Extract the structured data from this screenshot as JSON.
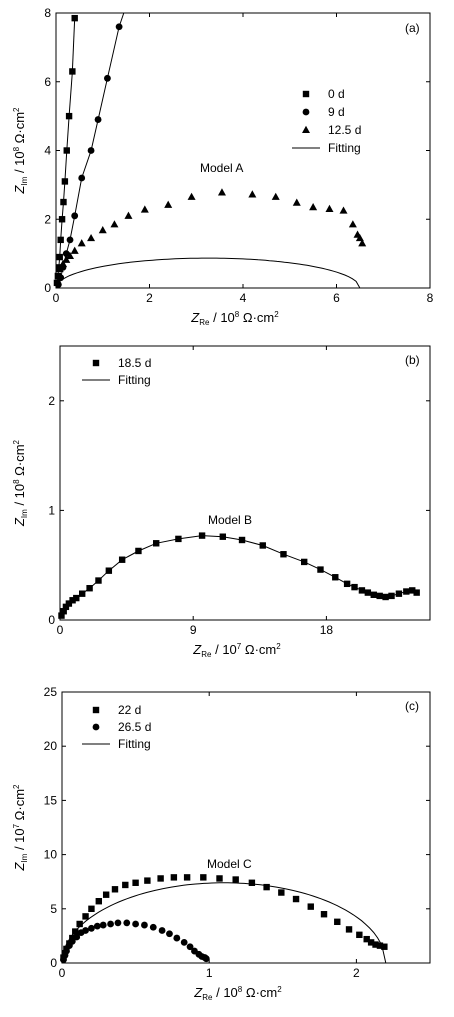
{
  "chart_data": [
    {
      "type": "scatter",
      "panel_label": "(a)",
      "annotation": "Model A",
      "xlabel": {
        "main": "Z",
        "sub": "Re",
        "unit": " / 10",
        "exp": "8",
        "unit2": " Ω·cm",
        "exp2": "2"
      },
      "ylabel": {
        "main": "Z",
        "sub": "Im",
        "unit": " / 10",
        "exp": "8",
        "unit2": " Ω·cm",
        "exp2": "2"
      },
      "xlim": [
        0,
        8
      ],
      "ylim": [
        0,
        8
      ],
      "xticks": [
        0,
        2,
        4,
        6,
        8
      ],
      "yticks": [
        0,
        2,
        4,
        6,
        8
      ],
      "legend_position": "top-right",
      "series": [
        {
          "name": "0 d",
          "marker": "square",
          "x": [
            0.02,
            0.04,
            0.06,
            0.08,
            0.1,
            0.13,
            0.16,
            0.19,
            0.23,
            0.28,
            0.35
          ],
          "y": [
            0.15,
            0.35,
            0.6,
            0.9,
            1.4,
            2.0,
            2.5,
            3.1,
            4.0,
            5.0,
            6.3
          ]
        },
        {
          "name": "9 d",
          "marker": "circle",
          "x": [
            0.05,
            0.1,
            0.15,
            0.22,
            0.3,
            0.4,
            0.55,
            0.75,
            0.9,
            1.1,
            1.35
          ],
          "y": [
            0.1,
            0.3,
            0.6,
            1.0,
            1.4,
            2.1,
            3.2,
            4.0,
            4.9,
            6.1,
            7.6
          ]
        },
        {
          "name": "12.5 d",
          "marker": "triangle",
          "x": [
            0.08,
            0.15,
            0.22,
            0.3,
            0.4,
            0.55,
            0.75,
            1.0,
            1.25,
            1.55,
            1.9,
            2.4,
            2.9,
            3.55,
            4.2,
            4.7,
            5.15,
            5.5,
            5.85,
            6.15,
            6.35,
            6.45,
            6.5,
            6.55
          ],
          "y": [
            0.55,
            0.7,
            0.82,
            0.93,
            1.08,
            1.3,
            1.45,
            1.68,
            1.85,
            2.1,
            2.28,
            2.42,
            2.65,
            2.78,
            2.72,
            2.65,
            2.48,
            2.35,
            2.3,
            2.25,
            1.85,
            1.55,
            1.45,
            1.3
          ]
        },
        {
          "name": "Fitting",
          "marker": "line"
        }
      ]
    },
    {
      "type": "scatter",
      "panel_label": "(b)",
      "annotation": "Model B",
      "xlabel": {
        "main": "Z",
        "sub": "Re",
        "unit": " / 10",
        "exp": "7",
        "unit2": " Ω·cm",
        "exp2": "2"
      },
      "ylabel": {
        "main": "Z",
        "sub": "Im",
        "unit": " / 10",
        "exp": "8",
        "unit2": " Ω·cm",
        "exp2": "2"
      },
      "xlim": [
        0,
        25
      ],
      "ylim": [
        0,
        2.5
      ],
      "xticks": [
        0,
        9,
        18
      ],
      "yticks": [
        0,
        1,
        2
      ],
      "legend_position": "top-left",
      "series": [
        {
          "name": "18.5 d",
          "marker": "square",
          "x": [
            0.1,
            0.25,
            0.4,
            0.6,
            0.85,
            1.1,
            1.5,
            2.0,
            2.6,
            3.3,
            4.2,
            5.3,
            6.5,
            8.0,
            9.6,
            11.0,
            12.3,
            13.7,
            15.1,
            16.5,
            17.6,
            18.6,
            19.4,
            19.9,
            20.4,
            20.8,
            21.2,
            21.6,
            22.0,
            22.4,
            22.9,
            23.4,
            23.8,
            24.1
          ],
          "y": [
            0.04,
            0.08,
            0.12,
            0.15,
            0.18,
            0.2,
            0.24,
            0.29,
            0.36,
            0.45,
            0.55,
            0.63,
            0.7,
            0.74,
            0.77,
            0.76,
            0.73,
            0.68,
            0.6,
            0.53,
            0.46,
            0.39,
            0.33,
            0.3,
            0.27,
            0.25,
            0.23,
            0.22,
            0.21,
            0.22,
            0.24,
            0.26,
            0.27,
            0.25
          ]
        },
        {
          "name": "Fitting",
          "marker": "line"
        }
      ]
    },
    {
      "type": "scatter",
      "panel_label": "(c)",
      "annotation": "Model C",
      "xlabel": {
        "main": "Z",
        "sub": "Re",
        "unit": " / 10",
        "exp": "8",
        "unit2": " Ω·cm",
        "exp2": "2"
      },
      "ylabel": {
        "main": "Z",
        "sub": "Im",
        "unit": " / 10",
        "exp": "7",
        "unit2": " Ω·cm",
        "exp2": "2"
      },
      "xlim": [
        0,
        2.5
      ],
      "ylim": [
        0,
        25
      ],
      "xticks": [
        0,
        1,
        2
      ],
      "yticks": [
        0,
        5,
        10,
        15,
        20,
        25
      ],
      "legend_position": "top-left",
      "series": [
        {
          "name": "22 d",
          "marker": "square",
          "x": [
            0.01,
            0.02,
            0.03,
            0.05,
            0.07,
            0.09,
            0.12,
            0.16,
            0.2,
            0.25,
            0.3,
            0.36,
            0.43,
            0.5,
            0.58,
            0.67,
            0.76,
            0.85,
            0.96,
            1.07,
            1.18,
            1.29,
            1.39,
            1.49,
            1.59,
            1.69,
            1.78,
            1.87,
            1.95,
            2.02,
            2.07,
            2.1,
            2.13,
            2.16,
            2.19
          ],
          "y": [
            0.5,
            0.9,
            1.3,
            1.8,
            2.3,
            2.9,
            3.6,
            4.3,
            5.0,
            5.7,
            6.3,
            6.8,
            7.2,
            7.4,
            7.6,
            7.8,
            7.9,
            7.9,
            7.9,
            7.8,
            7.7,
            7.4,
            7.0,
            6.5,
            5.9,
            5.2,
            4.5,
            3.8,
            3.1,
            2.6,
            2.2,
            1.9,
            1.7,
            1.6,
            1.5
          ]
        },
        {
          "name": "26.5 d",
          "marker": "circle",
          "x": [
            0.01,
            0.02,
            0.03,
            0.05,
            0.07,
            0.1,
            0.13,
            0.16,
            0.2,
            0.24,
            0.28,
            0.33,
            0.38,
            0.44,
            0.5,
            0.56,
            0.62,
            0.68,
            0.73,
            0.78,
            0.83,
            0.87,
            0.9,
            0.93,
            0.95,
            0.97,
            0.98
          ],
          "y": [
            0.3,
            0.7,
            1.1,
            1.6,
            2.0,
            2.4,
            2.8,
            3.0,
            3.2,
            3.4,
            3.5,
            3.6,
            3.7,
            3.7,
            3.6,
            3.5,
            3.3,
            3.0,
            2.7,
            2.3,
            1.9,
            1.5,
            1.1,
            0.8,
            0.6,
            0.5,
            0.4
          ]
        },
        {
          "name": "Fitting",
          "marker": "line"
        }
      ]
    }
  ]
}
